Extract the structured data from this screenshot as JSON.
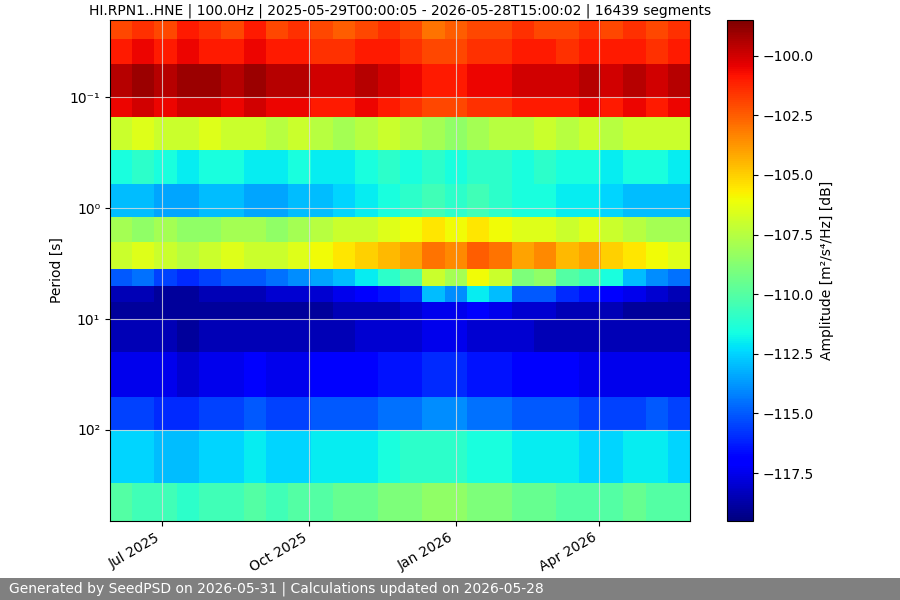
{
  "chart_data": {
    "type": "heatmap",
    "title": "HI.RPN1..HNE | 100.0Hz | 2025-05-29T00:00:05 - 2026-05-28T15:00:02 | 16439 segments",
    "y_label": "Period [s]",
    "colorbar_label": "Amplitude [m²/s⁴/Hz] [dB]",
    "footer": "Generated by SeedPSD on 2026-05-31 | Calculations updated on 2026-05-28",
    "log": "y",
    "grid": true,
    "xlim": [
      "2025-05-29",
      "2026-05-28"
    ],
    "xticks": [
      {
        "value": "2025-07-01",
        "label": "Jul 2025"
      },
      {
        "value": "2025-10-01",
        "label": "Oct 2025"
      },
      {
        "value": "2026-01-01",
        "label": "Jan 2026"
      },
      {
        "value": "2026-04-01",
        "label": "Apr 2026"
      }
    ],
    "ylim": [
      660,
      0.02
    ],
    "yticks": [
      {
        "value": 0.1,
        "label": "10⁻¹"
      },
      {
        "value": 1,
        "label": "10⁰"
      },
      {
        "value": 10,
        "label": "10¹"
      },
      {
        "value": 100,
        "label": "10²"
      }
    ],
    "time_edges": [
      "2025-05-29",
      "2025-06-12",
      "2025-06-26",
      "2025-07-10",
      "2025-07-24",
      "2025-08-07",
      "2025-08-21",
      "2025-09-04",
      "2025-09-18",
      "2025-10-02",
      "2025-10-16",
      "2025-10-30",
      "2025-11-13",
      "2025-11-27",
      "2025-12-11",
      "2025-12-25",
      "2026-01-08",
      "2026-01-22",
      "2026-02-05",
      "2026-02-19",
      "2026-03-05",
      "2026-03-19",
      "2026-04-02",
      "2026-04-16",
      "2026-04-30",
      "2026-05-14",
      "2026-05-28"
    ],
    "period_edges": [
      0.02,
      0.03,
      0.05,
      0.1,
      0.15,
      0.3,
      0.6,
      1.2,
      2,
      3.5,
      5,
      7,
      10,
      20,
      50,
      100,
      300,
      660
    ],
    "cells": [
      [
        -102,
        -101.5,
        -102,
        -101,
        -101.5,
        -102,
        -101,
        -102,
        -101.5,
        -102,
        -102.5,
        -102,
        -101.5,
        -102,
        -103,
        -102.5,
        -102,
        -102,
        -101.5,
        -102,
        -102,
        -101.5,
        -102,
        -101.5,
        -102,
        -101.5
      ],
      [
        -101,
        -100.5,
        -101,
        -100.5,
        -101,
        -101,
        -100.5,
        -101,
        -101,
        -101.5,
        -101.5,
        -101,
        -101,
        -101.5,
        -102,
        -102,
        -101.5,
        -101.5,
        -101,
        -101,
        -101.5,
        -101,
        -101,
        -101,
        -101.5,
        -101
      ],
      [
        -99.5,
        -99,
        -99.5,
        -99,
        -99,
        -99.5,
        -99,
        -99.5,
        -99.5,
        -100,
        -100,
        -99.5,
        -100,
        -100.5,
        -101,
        -101,
        -100.5,
        -100.5,
        -100,
        -100,
        -100,
        -99.5,
        -100,
        -99.5,
        -100,
        -99.5
      ],
      [
        -100.5,
        -100,
        -100.5,
        -100,
        -100,
        -100.5,
        -100,
        -100.5,
        -100.5,
        -101,
        -101,
        -100.5,
        -101,
        -101.5,
        -102,
        -102,
        -101.5,
        -101.5,
        -101,
        -101,
        -101,
        -100.5,
        -101,
        -100.5,
        -101,
        -100.5
      ],
      [
        -107,
        -106.5,
        -107,
        -107,
        -106.5,
        -107,
        -107,
        -107.5,
        -107,
        -107.5,
        -108,
        -107.5,
        -107,
        -107.5,
        -108,
        -108.5,
        -108,
        -107.5,
        -107.5,
        -107,
        -107.5,
        -107,
        -107.5,
        -107,
        -107,
        -107
      ],
      [
        -111.5,
        -111,
        -111.5,
        -112,
        -111.5,
        -111.5,
        -112,
        -112,
        -111.5,
        -112,
        -112,
        -111.5,
        -111,
        -111.5,
        -111,
        -111.5,
        -111,
        -111,
        -111.5,
        -111,
        -111.5,
        -111.5,
        -112,
        -111.5,
        -111.5,
        -112
      ],
      [
        -113,
        -113,
        -113.5,
        -113.5,
        -113,
        -113,
        -113.5,
        -113.5,
        -113,
        -113,
        -112.5,
        -112,
        -111.5,
        -111,
        -110.5,
        -111,
        -110.5,
        -111,
        -111.5,
        -111.5,
        -112,
        -112,
        -112.5,
        -113,
        -113,
        -113
      ],
      [
        -108,
        -108.5,
        -108,
        -108.5,
        -108.5,
        -108,
        -108,
        -108.5,
        -108,
        -107.5,
        -107,
        -107,
        -106.5,
        -106,
        -105.5,
        -106,
        -105.5,
        -106,
        -106.5,
        -106.5,
        -107,
        -106.5,
        -107,
        -107.5,
        -108,
        -108
      ],
      [
        -107,
        -106.5,
        -107,
        -107.5,
        -107,
        -106.5,
        -107,
        -107,
        -106.5,
        -106,
        -105.5,
        -105,
        -104.5,
        -104,
        -103,
        -103.5,
        -102.5,
        -103,
        -104,
        -103.5,
        -104.5,
        -104,
        -105,
        -105.5,
        -106,
        -106.5
      ],
      [
        -115,
        -114.5,
        -115.5,
        -116,
        -115.5,
        -115,
        -115,
        -114.5,
        -114,
        -113.5,
        -113,
        -112,
        -111,
        -110,
        -107,
        -108,
        -106,
        -107,
        -109,
        -108.5,
        -110,
        -110.5,
        -111.5,
        -113,
        -114,
        -114.5
      ],
      [
        -118.5,
        -118.5,
        -119,
        -119,
        -118.5,
        -118.5,
        -118.5,
        -118,
        -118,
        -118,
        -117.5,
        -117,
        -116.5,
        -116,
        -113,
        -114,
        -112,
        -113,
        -115,
        -115,
        -116,
        -116.5,
        -117,
        -117.5,
        -118,
        -118.5
      ],
      [
        -119,
        -119,
        -119,
        -119,
        -119,
        -119,
        -119,
        -119,
        -119,
        -119,
        -118.5,
        -118.5,
        -118.5,
        -118,
        -117.5,
        -117.5,
        -117,
        -117.5,
        -118,
        -118,
        -118.5,
        -118.5,
        -118.5,
        -119,
        -119,
        -119
      ],
      [
        -118.5,
        -118.5,
        -118.5,
        -119,
        -118.5,
        -118.5,
        -118.5,
        -118.5,
        -118.5,
        -118.5,
        -118.5,
        -118,
        -118,
        -118,
        -117.5,
        -117.5,
        -118,
        -118,
        -118,
        -118.5,
        -118.5,
        -118.5,
        -118.5,
        -118.5,
        -118.5,
        -118.5
      ],
      [
        -117.5,
        -117.5,
        -117.5,
        -118,
        -117.5,
        -117.5,
        -117,
        -117.5,
        -117.5,
        -117,
        -117,
        -117,
        -116.5,
        -116.5,
        -116,
        -116,
        -116.5,
        -116.5,
        -117,
        -117,
        -117,
        -117.5,
        -117.5,
        -117.5,
        -117.5,
        -117.5
      ],
      [
        -115.5,
        -115.5,
        -116,
        -116,
        -115.5,
        -115.5,
        -115,
        -115.5,
        -115.5,
        -115,
        -115,
        -115,
        -114.5,
        -114.5,
        -114,
        -114,
        -114.5,
        -114.5,
        -115,
        -115,
        -115,
        -115.5,
        -115.5,
        -115.5,
        -115,
        -115.5
      ],
      [
        -112.5,
        -112.5,
        -113,
        -113,
        -112.5,
        -112.5,
        -112,
        -112.5,
        -112.5,
        -112,
        -112,
        -112,
        -111.5,
        -111,
        -111,
        -111,
        -111.5,
        -111.5,
        -112,
        -112,
        -112,
        -112.5,
        -112.5,
        -112,
        -112,
        -112.5
      ],
      [
        -110,
        -110.5,
        -110.5,
        -111,
        -110.5,
        -110.5,
        -110,
        -110.5,
        -110,
        -110,
        -109.5,
        -109.5,
        -109,
        -109,
        -108.5,
        -108.5,
        -109,
        -109,
        -109.5,
        -109.5,
        -110,
        -110,
        -110,
        -109.5,
        -110,
        -110
      ]
    ],
    "colorbar_range": [
      -119.5,
      -98.5
    ],
    "colorbar_ticks": [
      {
        "value": -117.5,
        "label": "−117.5"
      },
      {
        "value": -115,
        "label": "−115.0"
      },
      {
        "value": -112.5,
        "label": "−112.5"
      },
      {
        "value": -110,
        "label": "−110.0"
      },
      {
        "value": -107.5,
        "label": "−107.5"
      },
      {
        "value": -105,
        "label": "−105.0"
      },
      {
        "value": -102.5,
        "label": "−102.5"
      },
      {
        "value": -100,
        "label": "−100.0"
      }
    ]
  }
}
